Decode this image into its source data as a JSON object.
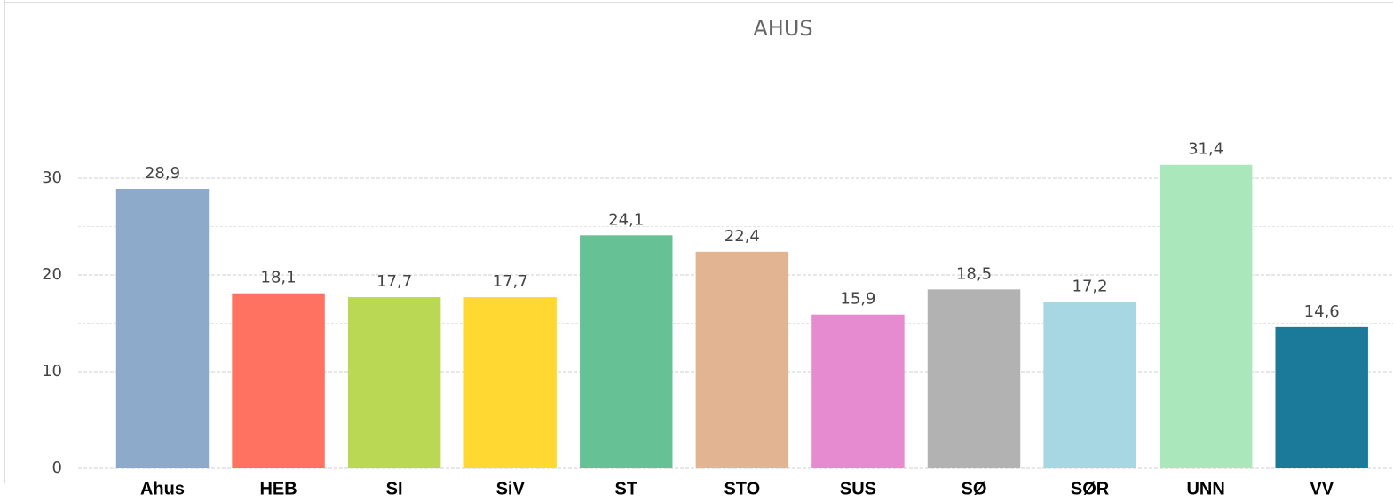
{
  "chart_data": {
    "type": "bar",
    "title": "AHUS",
    "categories": [
      "Ahus",
      "HEB",
      "SI",
      "SiV",
      "ST",
      "STO",
      "SUS",
      "SØ",
      "SØR",
      "UNN",
      "VV"
    ],
    "values": [
      28.9,
      18.1,
      17.7,
      17.7,
      24.1,
      22.4,
      15.9,
      18.5,
      17.2,
      31.4,
      14.6
    ],
    "value_labels": [
      "28,9",
      "18,1",
      "17,7",
      "17,7",
      "24,1",
      "22,4",
      "15,9",
      "18,5",
      "17,2",
      "31,4",
      "14,6"
    ],
    "colors": [
      "#8eaacb",
      "#ff7161",
      "#bbd855",
      "#ffd932",
      "#66c194",
      "#e3b492",
      "#e78bd1",
      "#b2b2b2",
      "#a7d7e3",
      "#aae8bb",
      "#1b7a99"
    ],
    "ylim": [
      0,
      33
    ],
    "yticks": [
      0,
      10,
      20,
      30
    ],
    "minor_yticks": [
      5,
      15,
      25
    ],
    "grid": true
  }
}
